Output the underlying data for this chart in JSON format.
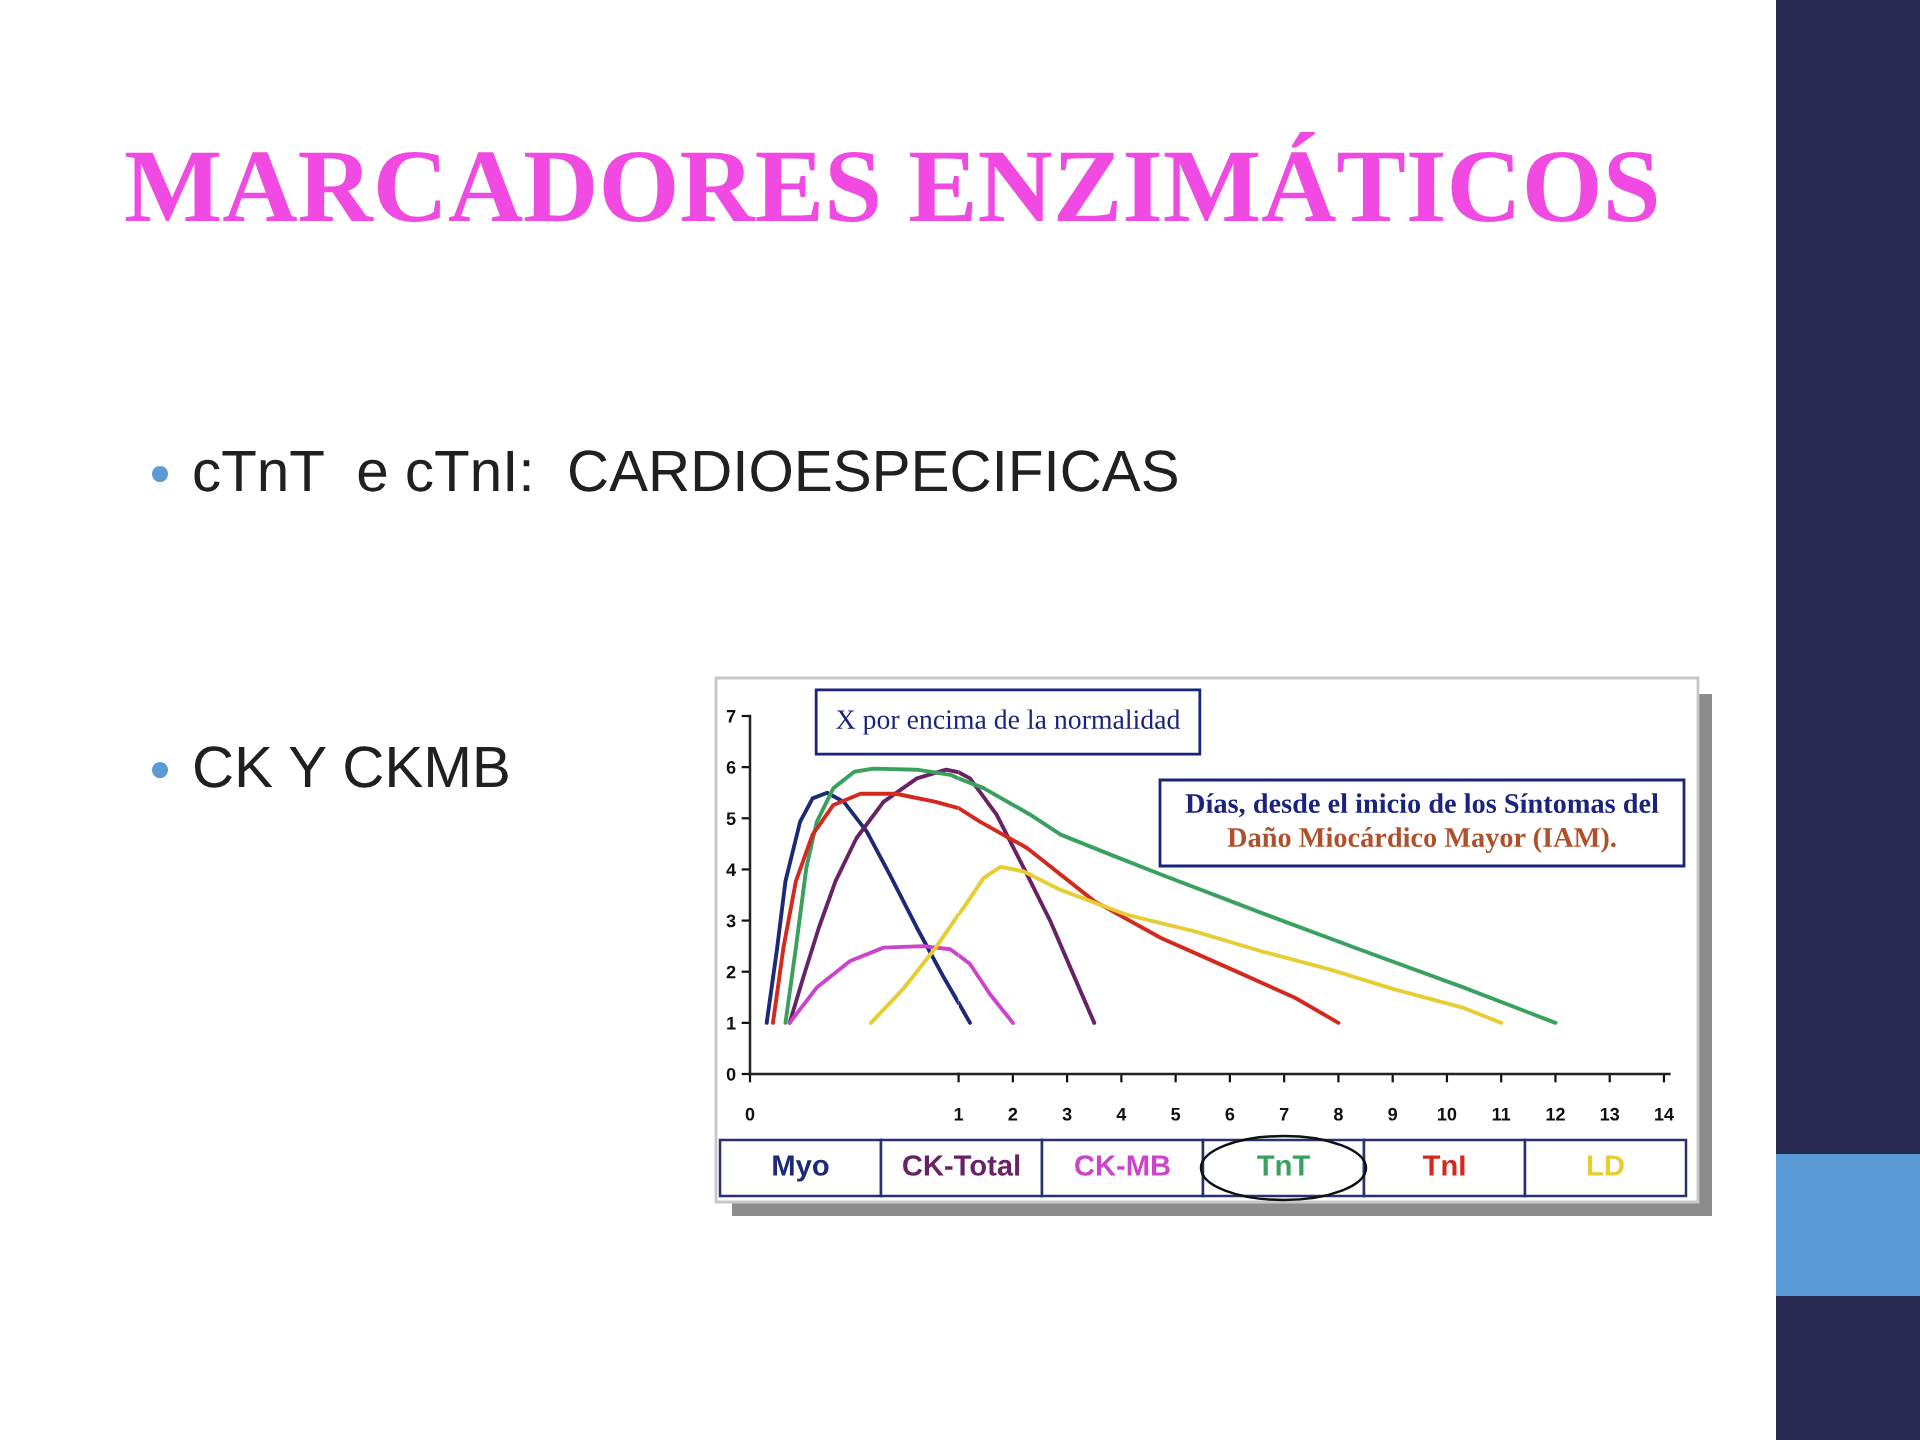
{
  "chart_data": [
    {
      "type": "line",
      "title": "MARCADORES ENZIMÁTICOS",
      "annotations": [
        "cTnT  e cTnI:  CARDIOESPECIFICAS",
        "CK Y CKMB"
      ],
      "ylabel": "X por encima de la normalidad",
      "xlim": [
        0,
        1
      ],
      "xticks": [
        0,
        1
      ],
      "ylim": [
        0,
        7
      ],
      "yticks": [
        0,
        1,
        2,
        3,
        4,
        5,
        6,
        7
      ],
      "legend": "bottom",
      "series": [
        {
          "name": "Myo",
          "color": "#1c2a78",
          "x": [
            0.08,
            0.13,
            0.17,
            0.24,
            0.3,
            0.37,
            0.45,
            0.56,
            0.67,
            0.8,
            0.93,
            1.0
          ],
          "values": [
            1.0,
            2.46,
            3.77,
            4.93,
            5.39,
            5.5,
            5.32,
            4.74,
            3.9,
            2.86,
            1.88,
            1.39
          ]
        },
        {
          "name": "CK-Total",
          "color": "#6a2266",
          "x": [
            0.19,
            0.26,
            0.33,
            0.41,
            0.51,
            0.64,
            0.8,
            0.94,
            1.0
          ],
          "values": [
            1.0,
            1.95,
            2.86,
            3.77,
            4.61,
            5.32,
            5.78,
            5.95,
            5.9
          ]
        },
        {
          "name": "CK-MB",
          "color": "#cc44cc",
          "x": [
            0.19,
            0.32,
            0.48,
            0.64,
            0.83,
            0.96,
            1.0
          ],
          "values": [
            1.0,
            1.69,
            2.21,
            2.47,
            2.5,
            2.44,
            2.32
          ]
        },
        {
          "name": "TnT",
          "color": "#3aa05e",
          "x": [
            0.17,
            0.22,
            0.27,
            0.32,
            0.4,
            0.5,
            0.59,
            0.8,
            0.96,
            1.0
          ],
          "values": [
            1.0,
            2.47,
            4.03,
            4.93,
            5.59,
            5.91,
            5.97,
            5.95,
            5.85,
            5.78
          ]
        },
        {
          "name": "TnI",
          "color": "#d42a1e",
          "x": [
            0.11,
            0.16,
            0.22,
            0.3,
            0.4,
            0.53,
            0.7,
            0.89,
            1.0
          ],
          "values": [
            1.0,
            2.46,
            3.77,
            4.68,
            5.26,
            5.48,
            5.48,
            5.32,
            5.2
          ]
        },
        {
          "name": "LD",
          "color": "#e8cc34",
          "x": [
            0.58,
            0.74,
            0.89,
            1.0
          ],
          "values": [
            1.0,
            1.69,
            2.47,
            3.12
          ]
        }
      ]
    },
    {
      "type": "line",
      "xlabel": "Días, desde el inicio de los Síntomas del\nDaño Miocárdico Mayor (IAM).",
      "xlim": [
        1,
        14.1
      ],
      "xticks": [
        2,
        3,
        4,
        5,
        6,
        7,
        8,
        9,
        10,
        11,
        12,
        13,
        14
      ],
      "ylim": [
        0,
        7
      ],
      "tick_labels": "x",
      "series": [
        {
          "color": "#1c2a78",
          "x": [
            1.0,
            1.21
          ],
          "values": [
            1.39,
            1.0
          ]
        },
        {
          "color": "#6a2266",
          "x": [
            1.0,
            1.21,
            1.7,
            2.2,
            2.69,
            3.06,
            3.5
          ],
          "values": [
            5.9,
            5.78,
            5.07,
            4.03,
            2.99,
            2.08,
            1.0
          ]
        },
        {
          "color": "#cc44cc",
          "x": [
            1.0,
            1.21,
            1.58,
            2.0
          ],
          "values": [
            2.32,
            2.15,
            1.56,
            1.0
          ]
        },
        {
          "color": "#3aa05e",
          "x": [
            1.0,
            1.46,
            2.32,
            2.88,
            3.8,
            4.73,
            6.58,
            8.43,
            10.29,
            12.0
          ],
          "values": [
            5.78,
            5.59,
            5.07,
            4.68,
            4.29,
            3.9,
            3.15,
            2.42,
            1.7,
            1.0
          ]
        },
        {
          "color": "#d42a1e",
          "x": [
            1.0,
            1.4,
            2.26,
            3.5,
            4.73,
            5.96,
            7.2,
            8.0
          ],
          "values": [
            5.2,
            4.93,
            4.42,
            3.38,
            2.66,
            2.08,
            1.49,
            1.0
          ]
        },
        {
          "color": "#e8cc34",
          "x": [
            1.0,
            1.09,
            1.46,
            1.77,
            2.2,
            2.88,
            4.11,
            5.35,
            6.58,
            7.82,
            9.05,
            10.29,
            11.0
          ],
          "values": [
            3.12,
            3.25,
            3.83,
            4.05,
            3.96,
            3.6,
            3.11,
            2.79,
            2.4,
            2.05,
            1.65,
            1.3,
            1.0
          ]
        }
      ]
    }
  ]
}
